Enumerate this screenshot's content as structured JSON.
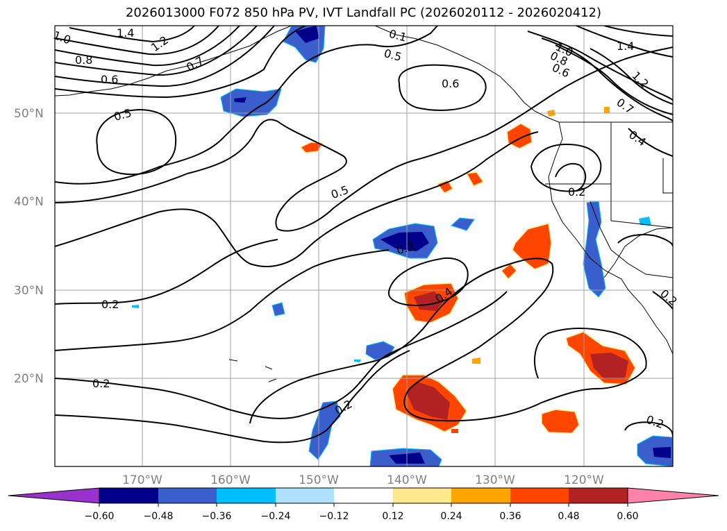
{
  "title": "2026013000 F072 850 hPa PV, IVT Landfall PC (2026020112 - 2026020412)",
  "map": {
    "lat_labels": [
      "50°N",
      "40°N",
      "30°N",
      "20°N"
    ],
    "lon_labels": [
      "170°W",
      "160°W",
      "150°W",
      "140°W",
      "130°W",
      "120°W"
    ],
    "contour_labels": [
      "1.4",
      "1.2",
      "1.0",
      "0.8",
      "0.7",
      "0.6",
      "0.5",
      "0.5",
      "0.6",
      "0.5",
      "1.0",
      "0.8",
      "0.6",
      "1.4",
      "1.2",
      "0.7",
      "0.4",
      "0.2",
      "0.3",
      "0.4",
      "0.2",
      "0.2",
      "0.2",
      "0.2",
      "0.2",
      "0.1"
    ]
  },
  "colorbar": {
    "ticks": [
      "−0.60",
      "−0.48",
      "−0.36",
      "−0.24",
      "−0.12",
      "0.12",
      "0.24",
      "0.36",
      "0.48",
      "0.60"
    ],
    "colors": [
      "#9932cc",
      "#00008b",
      "#3a5fcd",
      "#00bfff",
      "#b0e2ff",
      "#ffffff",
      "#ffe98f",
      "#ffa500",
      "#ff4500",
      "#b22222",
      "#ff82ab"
    ]
  },
  "palette": {
    "shade_neg_dark": "#00008b",
    "shade_neg_mid": "#3a5fcd",
    "shade_neg_light": "#00bfff",
    "shade_pos_light": "#ffe98f",
    "shade_pos_mid": "#ffa500",
    "shade_pos_strong": "#ff4500",
    "shade_pos_dark": "#b22222"
  }
}
